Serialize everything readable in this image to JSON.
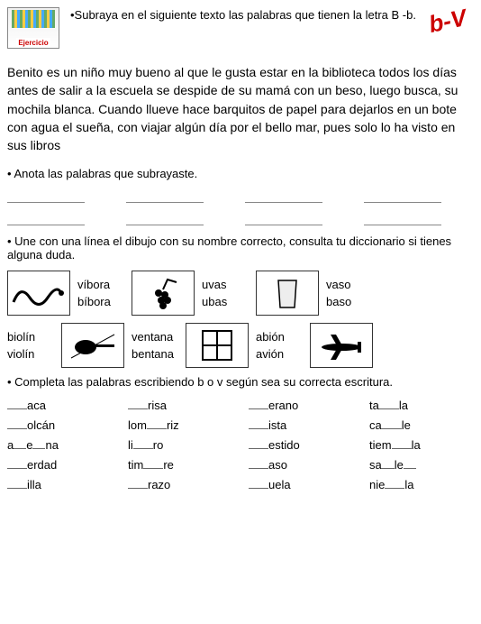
{
  "header": {
    "icon_label": "Ejercicio",
    "instruction": "•Subraya en el siguiente texto las palabras que tienen la letra B -b.",
    "badge": "b-V"
  },
  "paragraph": "Benito es un niño muy bueno al que le gusta estar en la biblioteca todos los días antes de salir a la escuela se despide de su mamá con un beso, luego busca, su mochila blanca. Cuando llueve hace barquitos de papel para dejarlos en un bote con agua el sueña, con viajar algún día por el bello mar, pues solo lo ha visto en sus libros",
  "task2": "• Anota las palabras que subrayaste.",
  "task3": "• Une con una línea el dibujo con su nombre correcto, consulta tu diccionario si tienes alguna duda.",
  "match": {
    "r1": [
      {
        "w1": "víbora",
        "w2": "bíbora"
      },
      {
        "w1": "uvas",
        "w2": "ubas"
      },
      {
        "w1": "vaso",
        "w2": "baso"
      }
    ],
    "r2": [
      {
        "w1": "biolín",
        "w2": "violín"
      },
      {
        "w1": "ventana",
        "w2": "bentana"
      },
      {
        "w1": "abión",
        "w2": "avión"
      }
    ]
  },
  "task4": "• Completa las palabras escribiendo b o v según sea su correcta escritura.",
  "fill": [
    {
      "pre": "",
      "mid": "",
      "suf": "aca"
    },
    {
      "pre": "",
      "mid": "",
      "suf": "risa"
    },
    {
      "pre": "",
      "mid": "",
      "suf": "erano"
    },
    {
      "pre": "ta",
      "mid": "",
      "suf": "la"
    },
    {
      "pre": "",
      "mid": "",
      "suf": "olcán"
    },
    {
      "pre": "lom",
      "mid": "",
      "suf": "riz"
    },
    {
      "pre": "",
      "mid": "",
      "suf": "ista"
    },
    {
      "pre": "ca",
      "mid": "",
      "suf": "le"
    },
    {
      "pre": "a",
      "mid": "",
      "suf": "e na",
      "dual": true
    },
    {
      "pre": "li",
      "mid": "",
      "suf": "ro"
    },
    {
      "pre": "",
      "mid": "",
      "suf": "estido"
    },
    {
      "pre": "tiem",
      "mid": "",
      "suf": "la"
    },
    {
      "pre": "",
      "mid": "",
      "suf": "erdad"
    },
    {
      "pre": "tim",
      "mid": "",
      "suf": "re"
    },
    {
      "pre": "",
      "mid": "",
      "suf": "aso"
    },
    {
      "pre": "sa",
      "mid": "",
      "suf": "le",
      "dual": true
    },
    {
      "pre": "",
      "mid": "",
      "suf": "illa"
    },
    {
      "pre": "",
      "mid": "",
      "suf": "razo"
    },
    {
      "pre": "",
      "mid": "",
      "suf": "uela"
    },
    {
      "pre": "nie",
      "mid": "",
      "suf": "la"
    }
  ]
}
